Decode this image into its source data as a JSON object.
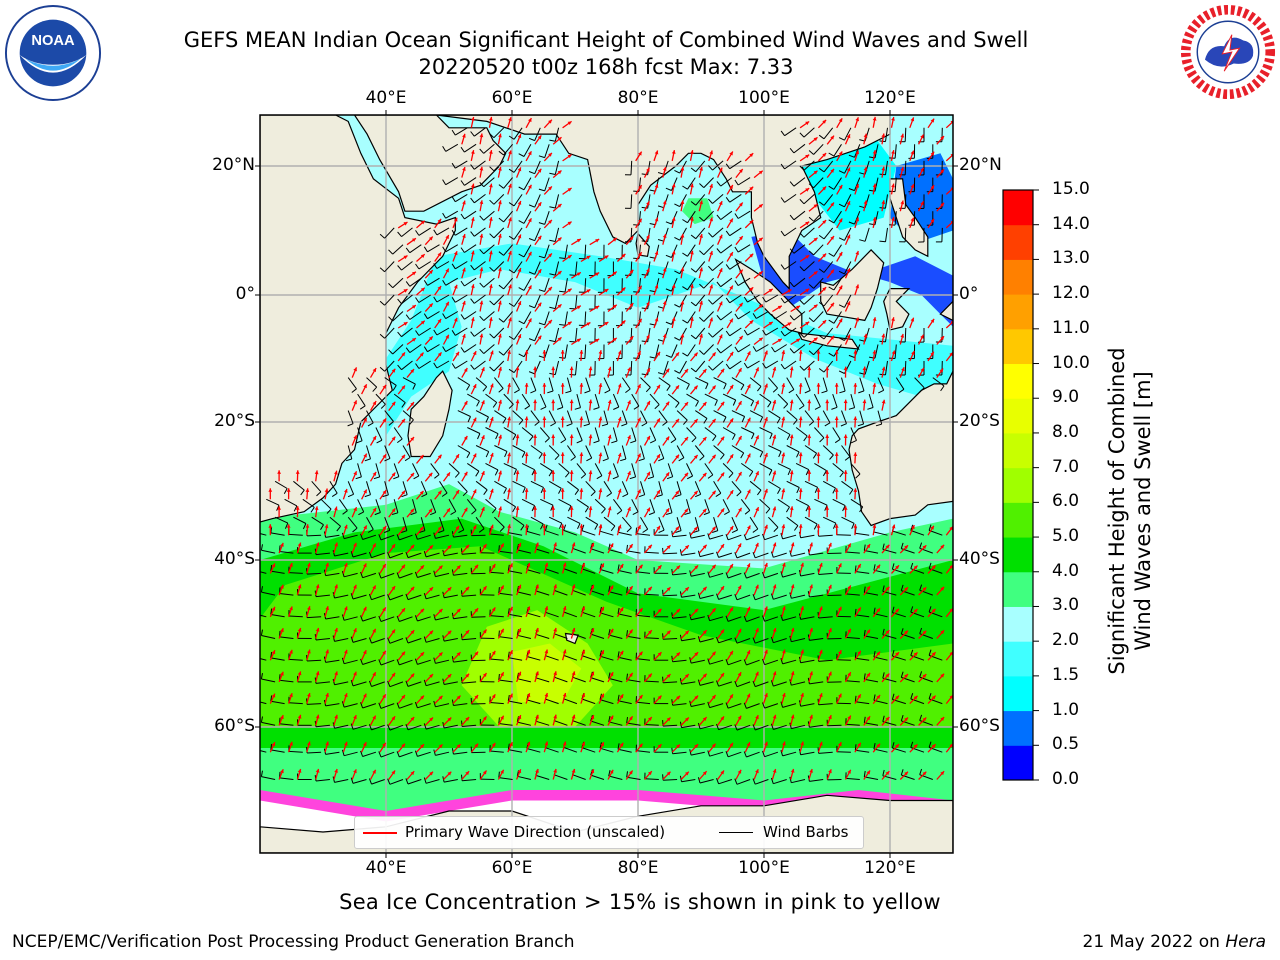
{
  "header": {
    "title_line1": "GEFS MEAN Indian Ocean Significant Height of Combined Wind Waves and Swell",
    "title_line2": "20220520 t00z 168h fcst   Max: 7.33"
  },
  "logos": {
    "left": {
      "icon": "noaa-logo",
      "text": "NOAA"
    },
    "right": {
      "icon": "national-weather-service-logo"
    }
  },
  "map": {
    "lon_ticks": [
      "40°E",
      "60°E",
      "80°E",
      "100°E",
      "120°E"
    ],
    "lat_ticks_left": [
      "20°N",
      "0°",
      "20°S",
      "40°S",
      "60°S"
    ],
    "lat_ticks_right": [
      "20°N",
      "0°",
      "20°S",
      "40°S",
      "60°S"
    ],
    "lon_range": [
      20,
      130
    ],
    "lat_range": [
      -72,
      28
    ],
    "grid": true,
    "colors": {
      "land": "#efeddd",
      "ice_free_antarctic": "#ffffff",
      "wave_direction": "#ff0000",
      "wind_barb": "#000000",
      "sea_ice": "#ff44dd"
    }
  },
  "legend": {
    "items": [
      {
        "label": "Primary Wave Direction (unscaled)",
        "color": "#ff0000"
      },
      {
        "label": "Wind Barbs",
        "color": "#000000"
      }
    ]
  },
  "colorbar": {
    "title_line1": "Significant Height of Combined",
    "title_line2": "Wind Waves and Swell [m]",
    "ticks": [
      "0.0",
      "0.5",
      "1.0",
      "1.5",
      "2.0",
      "3.0",
      "4.0",
      "5.0",
      "6.0",
      "7.0",
      "8.0",
      "9.0",
      "10.0",
      "11.0",
      "12.0",
      "13.0",
      "14.0",
      "15.0"
    ],
    "colors": [
      "#0000ff",
      "#0070ff",
      "#00ffff",
      "#40ffff",
      "#a8ffff",
      "#40ff80",
      "#00e000",
      "#50f000",
      "#a0ff00",
      "#c8ff00",
      "#e8ff00",
      "#ffff00",
      "#ffc800",
      "#ffa000",
      "#ff8000",
      "#ff4000",
      "#ff0000"
    ]
  },
  "footer": {
    "caption": "Sea Ice Concentration > 15% is shown in pink to yellow",
    "credit": "NCEP/EMC/Verification Post Processing Product Generation Branch",
    "date": "21 May 2022 on",
    "machine": "Hera"
  }
}
